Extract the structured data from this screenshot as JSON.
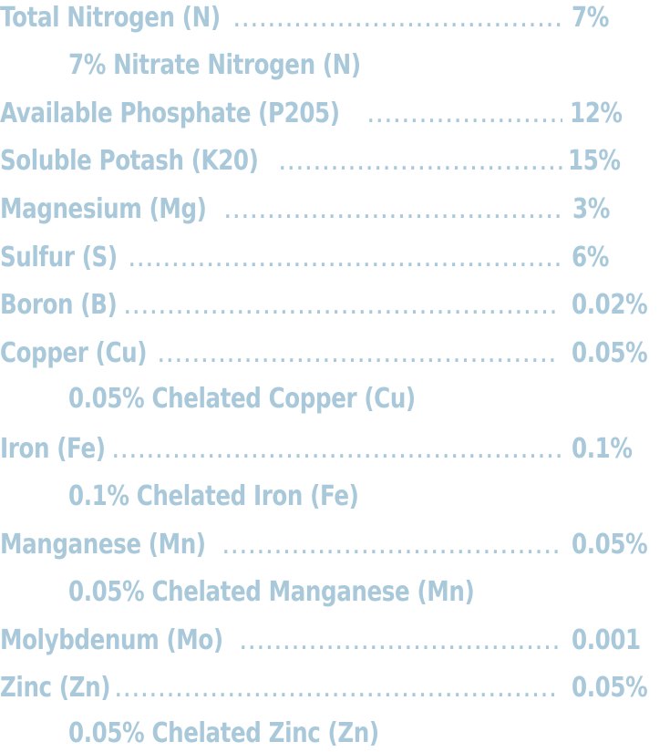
{
  "colors": {
    "text": "#a9c9da",
    "background": "#ffffff"
  },
  "nutrients": [
    {
      "label": "Total Nitrogen (N)",
      "value": "7%"
    },
    {
      "sub": "7% Nitrate Nitrogen (N)"
    },
    {
      "label": "Available Phosphate (P205)",
      "value": "12%"
    },
    {
      "label": "Soluble Potash (K20)",
      "value": "15%"
    },
    {
      "label": "Magnesium (Mg)",
      "value": "3%"
    },
    {
      "label": "Sulfur (S)",
      "value": "6%"
    },
    {
      "label": "Boron (B)",
      "value": "0.02%"
    },
    {
      "label": "Copper (Cu)",
      "value": "0.05%"
    },
    {
      "sub": "0.05% Chelated Copper (Cu)"
    },
    {
      "label": "Iron (Fe)",
      "value": "0.1%"
    },
    {
      "sub": "0.1% Chelated Iron (Fe)"
    },
    {
      "label": "Manganese (Mn)",
      "value": "0.05%"
    },
    {
      "sub": "0.05% Chelated Manganese (Mn)"
    },
    {
      "label": "Molybdenum (Mo)",
      "value": "0.001"
    },
    {
      "label": "Zinc (Zn)",
      "value": "0.05%"
    },
    {
      "sub": "0.05% Chelated Zinc (Zn)"
    }
  ]
}
